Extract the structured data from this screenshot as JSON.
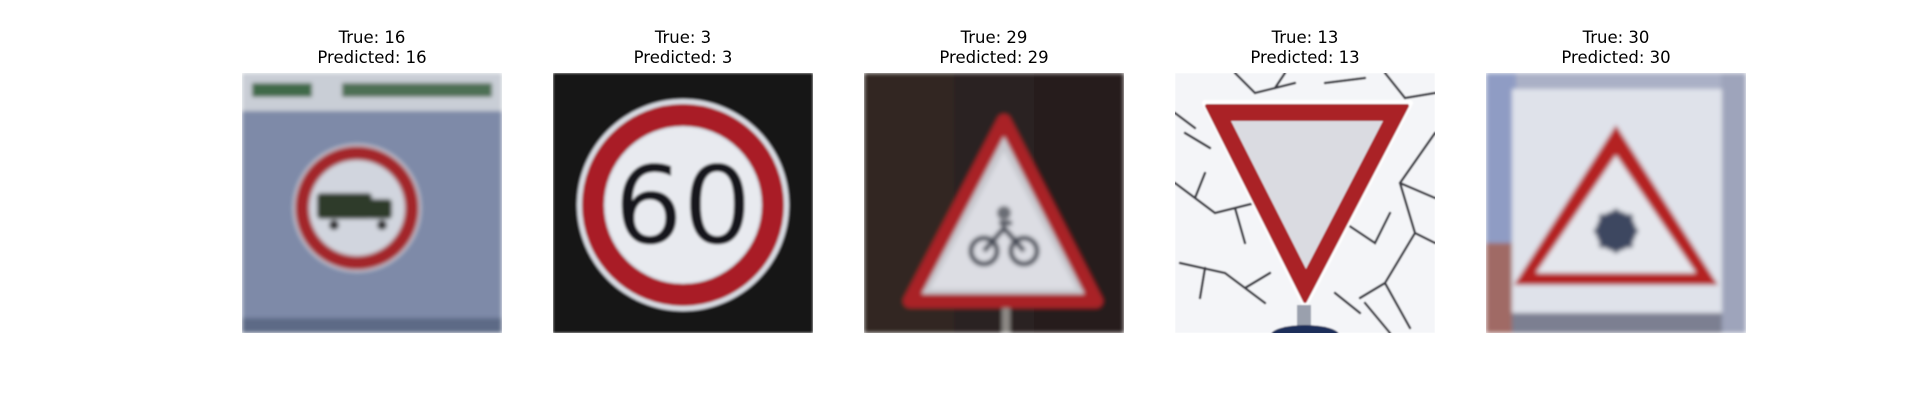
{
  "figure": {
    "panels": [
      {
        "true_label": "True: 16",
        "pred_label": "Predicted: 16",
        "sign": "no-trucks-sign",
        "sign_text": ""
      },
      {
        "true_label": "True: 3",
        "pred_label": "Predicted: 3",
        "sign": "speed-limit-sign",
        "sign_text": "60"
      },
      {
        "true_label": "True: 29",
        "pred_label": "Predicted: 29",
        "sign": "bicycle-crossing-sign",
        "sign_text": ""
      },
      {
        "true_label": "True: 13",
        "pred_label": "Predicted: 13",
        "sign": "yield-sign",
        "sign_text": ""
      },
      {
        "true_label": "True: 30",
        "pred_label": "Predicted: 30",
        "sign": "ice-snow-warning-sign",
        "sign_text": ""
      }
    ],
    "colors": {
      "sign_red": "#b01c22",
      "sign_white": "#e6e8ee"
    }
  }
}
